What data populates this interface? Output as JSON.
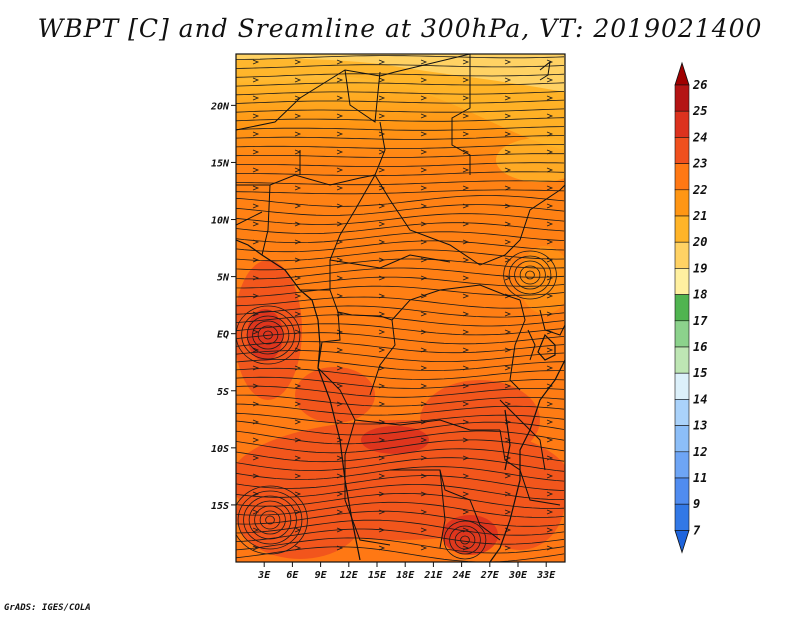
{
  "title": "WBPT [C] and Sreamline at 300hPa, VT: 2019021400",
  "credit": "GrADS: IGES/COLA",
  "map": {
    "lat_ticks": [
      "20N",
      "15N",
      "10N",
      "5N",
      "EQ",
      "5S",
      "10S",
      "15S"
    ],
    "lon_ticks": [
      "3E",
      "6E",
      "9E",
      "12E",
      "15E",
      "18E",
      "21E",
      "24E",
      "27E",
      "30E",
      "33E"
    ],
    "lat_range": [
      -20,
      24.5
    ],
    "lon_range": [
      0,
      35
    ],
    "field": "wet-bulb potential temperature",
    "overlay": "streamlines"
  },
  "colorbar": {
    "labels": [
      "7",
      "9",
      "11",
      "12",
      "13",
      "14",
      "15",
      "16",
      "17",
      "18",
      "19",
      "20",
      "21",
      "22",
      "23",
      "24",
      "25",
      "26"
    ],
    "colors": [
      "#1e64dc",
      "#3278e6",
      "#508cf0",
      "#6ea5f5",
      "#8cbef8",
      "#aad2fa",
      "#dcf0fa",
      "#bee6b4",
      "#8cd28c",
      "#50b450",
      "#fff0a0",
      "#ffd264",
      "#ffb428",
      "#ff9614",
      "#ff7814",
      "#f0501e",
      "#dc321e",
      "#b41414",
      "#a00000"
    ]
  }
}
